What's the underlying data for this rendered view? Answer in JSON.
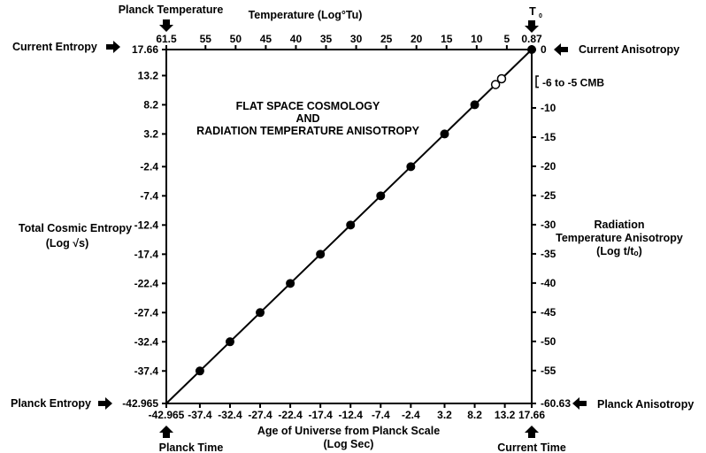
{
  "chart_data": {
    "type": "line",
    "title_lines": [
      "FLAT SPACE COSMOLOGY",
      "AND",
      "RADIATION TEMPERATURE ANISOTROPY"
    ],
    "xlabel_lines": [
      "Age of Universe from Planck Scale",
      "(Log Sec)"
    ],
    "ylabel_left_lines": [
      "Total Cosmic Entropy",
      "(Log √s)"
    ],
    "ylabel_right_lines": [
      "Radiation",
      "Temperature Anisotropy",
      "(Log t/tₒ)"
    ],
    "xlabel_top": "Temperature (Log°Tu)",
    "xlim": [
      -42.965,
      17.66
    ],
    "ylim": [
      -42.965,
      17.66
    ],
    "top_lim": [
      61.5,
      0.87
    ],
    "right_lim": [
      -60.63,
      0
    ],
    "x_ticks": [
      "-42.965",
      "-37.4",
      "-32.4",
      "-27.4",
      "-22.4",
      "-17.4",
      "-12.4",
      "-7.4",
      "-2.4",
      "3.2",
      "8.2",
      "13.2",
      "17.66"
    ],
    "y_ticks": [
      "17.66",
      "13.2",
      "8.2",
      "3.2",
      "-2.4",
      "-7.4",
      "-12.4",
      "-17.4",
      "-22.4",
      "-27.4",
      "-32.4",
      "-37.4",
      "-42.965"
    ],
    "top_ticks": [
      "61.5",
      "55",
      "50",
      "45",
      "40",
      "35",
      "30",
      "25",
      "20",
      "15",
      "10",
      "5",
      "0.87"
    ],
    "right_ticks": [
      "0",
      "-10",
      "-15",
      "-20",
      "-25",
      "-30",
      "-35",
      "-40",
      "-45",
      "-50",
      "-55",
      "-60.63"
    ],
    "right_bracket_label": "-6 to -5 CMB",
    "line": {
      "x": [
        -42.965,
        17.66
      ],
      "y": [
        -42.965,
        17.66
      ]
    },
    "points_filled": {
      "x": [
        -37.4,
        -32.4,
        -27.4,
        -22.4,
        -17.4,
        -12.4,
        -7.4,
        -2.4,
        3.2,
        8.2,
        17.66
      ],
      "y": [
        -37.4,
        -32.4,
        -27.4,
        -22.4,
        -17.4,
        -12.4,
        -7.4,
        -2.4,
        3.2,
        8.2,
        17.66
      ]
    },
    "points_open": {
      "x": [
        11.66,
        12.66
      ],
      "y": [
        11.66,
        12.66
      ]
    },
    "grid": false,
    "annotations": {
      "planck_temperature": "Planck Temperature",
      "t0": "T",
      "t0_sub": "0",
      "current_entropy": "Current Entropy",
      "current_anisotropy": "Current Anisotropy",
      "planck_entropy": "Planck Entropy",
      "planck_anisotropy": "Planck Anisotropy",
      "planck_time": "Planck Time",
      "current_time": "Current Time"
    }
  }
}
